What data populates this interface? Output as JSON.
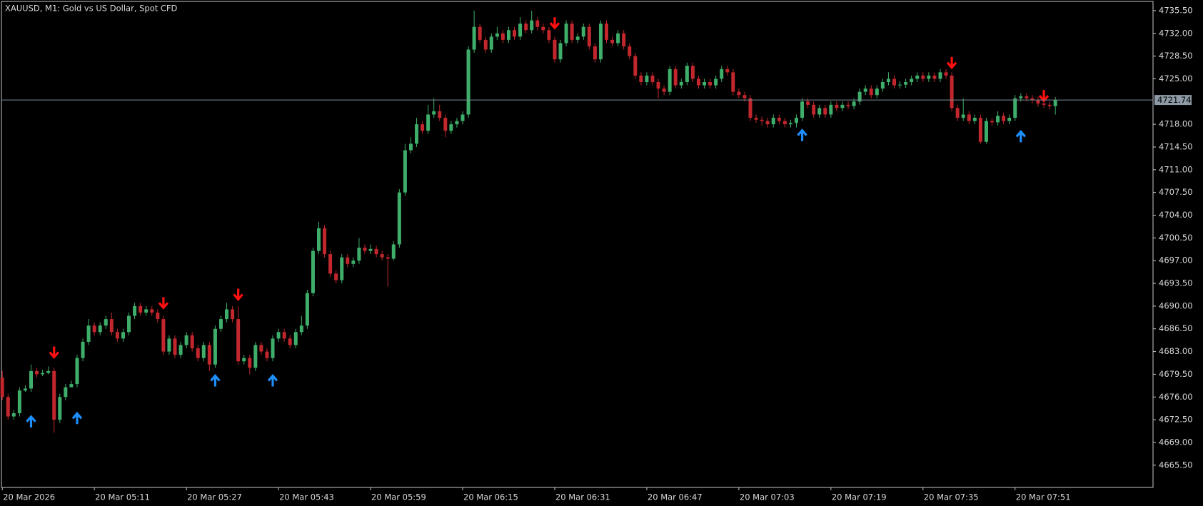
{
  "chart_data": {
    "type": "candlestick",
    "title": "XAUUSD, M1:  Gold vs US Dollar, Spot CFD",
    "categories": [
      "20 Mar 2026",
      null,
      null,
      null,
      null,
      null,
      null,
      null,
      null,
      null,
      null,
      null,
      null,
      null,
      null,
      null,
      "20 Mar 05:11",
      null,
      null,
      null,
      null,
      null,
      null,
      null,
      null,
      null,
      null,
      null,
      null,
      null,
      null,
      null,
      "20 Mar 05:27",
      null,
      null,
      null,
      null,
      null,
      null,
      null,
      null,
      null,
      null,
      null,
      null,
      null,
      null,
      null,
      "20 Mar 05:43",
      null,
      null,
      null,
      null,
      null,
      null,
      null,
      null,
      null,
      null,
      null,
      null,
      null,
      null,
      null,
      "20 Mar 05:59",
      null,
      null,
      null,
      null,
      null,
      null,
      null,
      null,
      null,
      null,
      null,
      null,
      null,
      null,
      null,
      "20 Mar 06:15",
      null,
      null,
      null,
      null,
      null,
      null,
      null,
      null,
      null,
      null,
      null,
      null,
      null,
      null,
      null,
      "20 Mar 06:31",
      null,
      null,
      null,
      null,
      null,
      null,
      null,
      null,
      null,
      null,
      null,
      null,
      null,
      null,
      null,
      "20 Mar 06:47",
      null,
      null,
      null,
      null,
      null,
      null,
      null,
      null,
      null,
      null,
      null,
      null,
      null,
      null,
      null,
      "20 Mar 07:03",
      null,
      null,
      null,
      null,
      null,
      null,
      null,
      null,
      null,
      null,
      null,
      null,
      null,
      null,
      null,
      "20 Mar 07:19",
      null,
      null,
      null,
      null,
      null,
      null,
      null,
      null,
      null,
      null,
      null,
      null,
      null,
      null,
      null,
      "20 Mar 07:35",
      null,
      null,
      null,
      null,
      null,
      null,
      null,
      null,
      null,
      null,
      null,
      null,
      null,
      null,
      null,
      "20 Mar 07:51",
      null,
      null,
      null,
      null,
      null,
      null,
      null
    ],
    "open": [
      4679,
      4676,
      4673,
      4673.5,
      4677,
      4677.3,
      4680,
      4679.5,
      4679.7,
      4680,
      4672.5,
      4676,
      4677.5,
      4678,
      4682,
      4684.5,
      4687,
      4686,
      4687,
      4688,
      4686,
      4685,
      4686,
      4688.5,
      4690,
      4689,
      4689.5,
      4689,
      4688,
      4683,
      4685,
      4682.5,
      4684,
      4685.5,
      4683.5,
      4682,
      4684,
      4681,
      4686.5,
      4688,
      4689.5,
      4688,
      4681.5,
      4682,
      4680.5,
      4684,
      4683,
      4682,
      4685,
      4686,
      4685,
      4684,
      4686,
      4687,
      4692,
      4698.5,
      4702,
      4698,
      4695,
      4694,
      4697.5,
      4696.5,
      4697,
      4699,
      4698.5,
      4698.8,
      4698,
      4697.5,
      4697.3,
      4699.5,
      4707.5,
      4714,
      4715,
      4718,
      4717,
      4719.5,
      4720,
      4719,
      4717,
      4718,
      4718.5,
      4719.5,
      4729.5,
      4733,
      4731,
      4729.5,
      4731.5,
      4732,
      4731,
      4732.5,
      4731.5,
      4733.5,
      4732.5,
      4734,
      4733,
      4732.5,
      4731,
      4728,
      4730.5,
      4733.5,
      4731,
      4731.5,
      4733,
      4730,
      4728,
      4733.5,
      4731,
      4730.5,
      4732,
      4730,
      4728.5,
      4725.5,
      4724.5,
      4725.5,
      4724.5,
      4723.5,
      4723,
      4726.5,
      4724,
      4724.5,
      4727,
      4725,
      4724,
      4724.5,
      4724,
      4725,
      4726.5,
      4726,
      4723,
      4722.5,
      4722,
      4719,
      4718.7,
      4718.5,
      4718,
      4719,
      4718.5,
      4718,
      4718.2,
      4719,
      4721.5,
      4721,
      4719.5,
      4720.5,
      4719.5,
      4721,
      4720.5,
      4721,
      4720.8,
      4721.5,
      4723,
      4723.5,
      4722.5,
      4723.5,
      4724.5,
      4725,
      4724,
      4724.1,
      4724.5,
      4725,
      4725.5,
      4725,
      4725.5,
      4725,
      4726,
      4725.5,
      4720.5,
      4719,
      4719.5,
      4718.5,
      4719,
      4715.3,
      4718.5,
      4718.3,
      4719.3,
      4718.5,
      4719,
      4722,
      4722.3,
      4722,
      4721.7,
      4721.2,
      4721,
      4720.8
    ],
    "high": [
      4680,
      4676.5,
      4674,
      4677.5,
      4677.8,
      4681,
      4680.5,
      4680.2,
      4680.7,
      4680.5,
      4676.5,
      4678,
      4678.5,
      4682.5,
      4685,
      4688,
      4687.5,
      4687.5,
      4688.5,
      4689,
      4686.5,
      4686.5,
      4689,
      4690.5,
      4690.5,
      4690,
      4690,
      4689.5,
      4688.5,
      4685.5,
      4685.5,
      4684.5,
      4686,
      4686,
      4684,
      4684.5,
      4684.5,
      4687,
      4688.5,
      4690.5,
      4690,
      4690,
      4682.5,
      4682.5,
      4684.5,
      4684.5,
      4683.5,
      4685.5,
      4686.5,
      4686.5,
      4685.5,
      4686.5,
      4688.5,
      4692.5,
      4699,
      4703,
      4702.5,
      4698.5,
      4695.5,
      4698,
      4698,
      4697.5,
      4700.5,
      4699.5,
      4699.5,
      4699.3,
      4698.5,
      4698,
      4700,
      4708,
      4715,
      4716,
      4719,
      4718.5,
      4721,
      4722,
      4721,
      4719.5,
      4718.5,
      4719,
      4720,
      4730,
      4735.5,
      4733.5,
      4731.5,
      4732,
      4733,
      4732.5,
      4733,
      4733,
      4734.5,
      4734,
      4735.5,
      4734.5,
      4733.5,
      4733,
      4731.5,
      4731,
      4734,
      4734,
      4732,
      4733.5,
      4733.5,
      4730.5,
      4734,
      4734,
      4731.5,
      4732.5,
      4732.5,
      4730.5,
      4729,
      4726,
      4726,
      4726,
      4725,
      4724,
      4727,
      4727,
      4725,
      4727.5,
      4727.5,
      4725.5,
      4725,
      4725,
      4725.5,
      4727,
      4727,
      4726.5,
      4723.5,
      4723,
      4722.5,
      4719.5,
      4719.2,
      4719,
      4719.5,
      4719.5,
      4719,
      4718.7,
      4719.5,
      4722,
      4722,
      4721.5,
      4721,
      4721,
      4721.5,
      4721.5,
      4721.5,
      4721.5,
      4722,
      4723.5,
      4724,
      4724,
      4724,
      4725,
      4726,
      4725.5,
      4724.6,
      4725,
      4725.5,
      4726,
      4726,
      4726,
      4726,
      4726.5,
      4726.5,
      4726,
      4721,
      4722,
      4720,
      4719.5,
      4719.5,
      4719,
      4719,
      4720,
      4719.8,
      4719.5,
      4722.5,
      4722.8,
      4722.8,
      4722.5,
      4722.2,
      4721.7,
      4721.5,
      4722.2
    ],
    "low": [
      4675.5,
      4672.5,
      4672.5,
      4673,
      4676.8,
      4676.8,
      4679,
      4679.2,
      4679.5,
      4670.5,
      4672,
      4675.5,
      4677.5,
      4677.5,
      4681.5,
      4684,
      4685.5,
      4685.5,
      4686.5,
      4685.5,
      4684.5,
      4684.5,
      4685.5,
      4688,
      4688.5,
      4688.5,
      4688.5,
      4687.5,
      4682.5,
      4682.5,
      4682,
      4682,
      4683.5,
      4683,
      4681.5,
      4681.5,
      4680,
      4680.5,
      4686,
      4687.5,
      4687.5,
      4681,
      4681,
      4679.5,
      4680,
      4682.5,
      4681.5,
      4681.5,
      4684.5,
      4684.5,
      4683.5,
      4683.5,
      4685.5,
      4686.5,
      4691.5,
      4698,
      4697.5,
      4694.5,
      4693.5,
      4693.5,
      4696,
      4696,
      4696.5,
      4698,
      4698,
      4697.5,
      4697,
      4693,
      4697,
      4699,
      4707,
      4713.5,
      4714.5,
      4716.5,
      4716.5,
      4719,
      4718.5,
      4716,
      4716.5,
      4717.5,
      4718,
      4719,
      4729,
      4730.5,
      4729,
      4729,
      4731,
      4730.5,
      4730.5,
      4731,
      4731,
      4732,
      4732,
      4732.5,
      4732,
      4730.5,
      4727.5,
      4727.5,
      4730,
      4730.5,
      4730.5,
      4731,
      4729.5,
      4727.5,
      4727.5,
      4730.5,
      4730,
      4730,
      4729.5,
      4728,
      4725,
      4724,
      4724,
      4724,
      4722,
      4722.5,
      4722.5,
      4723.5,
      4723.5,
      4724,
      4724.5,
      4723.5,
      4723.5,
      4723.5,
      4723.5,
      4724.5,
      4725.5,
      4722.5,
      4722,
      4721.5,
      4718.5,
      4718.2,
      4717.8,
      4717.5,
      4717.5,
      4718,
      4717.5,
      4717.5,
      4717.5,
      4718.5,
      4720.5,
      4719,
      4719,
      4719,
      4719,
      4720,
      4720,
      4720.3,
      4720.3,
      4721,
      4722.5,
      4722,
      4722,
      4723,
      4724,
      4723.5,
      4723.5,
      4723.6,
      4724,
      4724.5,
      4724.5,
      4724.5,
      4724.5,
      4724.5,
      4725,
      4720,
      4718.5,
      4718.5,
      4718,
      4718,
      4715,
      4715,
      4717.8,
      4717.8,
      4718,
      4718,
      4718.5,
      4721.5,
      4721.5,
      4721.2,
      4720.7,
      4720.5,
      4720.3,
      4719.5
    ],
    "close": [
      4676,
      4673,
      4673.5,
      4677,
      4677.3,
      4680,
      4679.5,
      4679.7,
      4680,
      4672.5,
      4676,
      4677.5,
      4678,
      4682,
      4684.5,
      4687,
      4686,
      4687,
      4688,
      4686,
      4685,
      4686,
      4688.5,
      4690,
      4689,
      4689.5,
      4689,
      4688,
      4683,
      4685,
      4682.5,
      4684,
      4685.5,
      4683.5,
      4682,
      4684,
      4681,
      4686.5,
      4688,
      4689.5,
      4688,
      4681.5,
      4682,
      4680.5,
      4684,
      4683,
      4682,
      4685,
      4686,
      4685,
      4684,
      4686,
      4687,
      4692,
      4698.5,
      4702,
      4698,
      4695,
      4694,
      4697.5,
      4696.5,
      4697,
      4699,
      4698.5,
      4698.8,
      4698,
      4697.5,
      4697.3,
      4699.5,
      4707.5,
      4714,
      4715,
      4718,
      4717,
      4719.5,
      4720,
      4719,
      4717,
      4718,
      4718.5,
      4719.5,
      4729.5,
      4733,
      4731,
      4729.5,
      4731.5,
      4732,
      4731,
      4732.5,
      4731.5,
      4733.5,
      4732.5,
      4734,
      4733,
      4732.5,
      4731,
      4728,
      4730.5,
      4733.5,
      4731,
      4731.5,
      4733,
      4730,
      4728,
      4733.5,
      4731,
      4730.5,
      4732,
      4730,
      4728.5,
      4725.5,
      4724.5,
      4725.5,
      4724.5,
      4723.5,
      4723,
      4726.5,
      4724,
      4724.5,
      4727,
      4725,
      4724,
      4724.5,
      4724,
      4725,
      4726.5,
      4726,
      4723,
      4722.5,
      4722,
      4719,
      4718.7,
      4718.5,
      4718,
      4719,
      4718.5,
      4718,
      4718.2,
      4719,
      4721.5,
      4721,
      4719.5,
      4720.5,
      4719.5,
      4721,
      4720.5,
      4721,
      4720.8,
      4721.5,
      4723,
      4723.5,
      4722.5,
      4723.5,
      4724.5,
      4725,
      4724,
      4724.1,
      4724.5,
      4725,
      4725.5,
      4725,
      4725.5,
      4725,
      4726,
      4725.5,
      4720.5,
      4719,
      4719.5,
      4718.5,
      4719,
      4715.3,
      4718.5,
      4718.3,
      4719.3,
      4718.5,
      4719,
      4722,
      4722.3,
      4722,
      4721.7,
      4721.2,
      4721,
      4720.8,
      4721.74
    ],
    "buy_arrows": [
      null,
      null,
      null,
      null,
      null,
      4672.2,
      null,
      null,
      null,
      null,
      null,
      null,
      null,
      4672.7,
      null,
      null,
      null,
      null,
      null,
      null,
      null,
      null,
      null,
      null,
      null,
      null,
      null,
      null,
      null,
      null,
      null,
      null,
      null,
      null,
      null,
      null,
      null,
      4678.5,
      null,
      null,
      null,
      null,
      null,
      null,
      null,
      null,
      null,
      4678.5,
      null,
      null,
      null,
      null,
      null,
      null,
      null,
      null,
      null,
      null,
      null,
      null,
      null,
      null,
      null,
      null,
      null,
      null,
      null,
      null,
      null,
      null,
      null,
      null,
      null,
      null,
      null,
      null,
      null,
      null,
      null,
      null,
      null,
      null,
      null,
      null,
      null,
      null,
      null,
      null,
      null,
      null,
      null,
      null,
      null,
      null,
      null,
      null,
      null,
      null,
      null,
      null,
      null,
      null,
      null,
      null,
      null,
      null,
      null,
      null,
      null,
      null,
      null,
      null,
      null,
      null,
      null,
      null,
      null,
      null,
      null,
      null,
      null,
      null,
      null,
      null,
      null,
      null,
      null,
      null,
      null,
      null,
      null,
      null,
      null,
      null,
      null,
      null,
      null,
      null,
      null,
      4716.3,
      null,
      null,
      null,
      null,
      null,
      null,
      null,
      null,
      null,
      null,
      null,
      null,
      null,
      null,
      null,
      null,
      null,
      null,
      null,
      null,
      null,
      null,
      null,
      null,
      null,
      null,
      null,
      null,
      null,
      null,
      null,
      null,
      null,
      null,
      null,
      null,
      null,
      4716.1,
      null,
      null,
      null,
      null,
      null,
      null
    ],
    "sell_arrows": [
      null,
      null,
      null,
      null,
      null,
      null,
      null,
      null,
      null,
      4682.9,
      null,
      null,
      null,
      null,
      null,
      null,
      null,
      null,
      null,
      null,
      null,
      null,
      null,
      null,
      null,
      null,
      null,
      null,
      4690.5,
      null,
      null,
      null,
      null,
      null,
      null,
      null,
      null,
      null,
      null,
      null,
      null,
      4691.8,
      null,
      null,
      null,
      null,
      null,
      null,
      null,
      null,
      null,
      null,
      null,
      null,
      null,
      null,
      null,
      null,
      null,
      null,
      null,
      null,
      null,
      null,
      null,
      null,
      null,
      null,
      null,
      null,
      null,
      null,
      null,
      null,
      null,
      null,
      null,
      null,
      null,
      null,
      null,
      null,
      null,
      null,
      null,
      null,
      null,
      null,
      null,
      null,
      null,
      null,
      null,
      null,
      null,
      null,
      4733.6,
      null,
      null,
      null,
      null,
      null,
      null,
      null,
      null,
      null,
      null,
      null,
      null,
      null,
      null,
      null,
      null,
      null,
      null,
      null,
      null,
      null,
      null,
      null,
      null,
      null,
      null,
      null,
      null,
      null,
      null,
      null,
      null,
      null,
      null,
      null,
      null,
      null,
      null,
      null,
      null,
      null,
      null,
      null,
      null,
      null,
      null,
      null,
      null,
      null,
      null,
      null,
      null,
      null,
      null,
      null,
      null,
      null,
      null,
      null,
      null,
      null,
      null,
      null,
      null,
      null,
      null,
      null,
      null,
      4727.5,
      null,
      null,
      null,
      null,
      null,
      null,
      null,
      null,
      null,
      null,
      null,
      null,
      null,
      null,
      null,
      4722.4,
      null,
      null
    ],
    "up_color": "#3fae6a",
    "down_color": "#c1272d",
    "buy_color": "#1e8fff",
    "sell_color": "#ff1010",
    "last_price": 4721.74,
    "ylim": [
      4662.07,
      4736.92
    ],
    "yticks": [
      {
        "value": 4665.5,
        "label": "4665.50"
      },
      {
        "value": 4669,
        "label": "4669.00"
      },
      {
        "value": 4672.5,
        "label": "4672.50"
      },
      {
        "value": 4676,
        "label": "4676.00"
      },
      {
        "value": 4679.5,
        "label": "4679.50"
      },
      {
        "value": 4683,
        "label": "4683.00"
      },
      {
        "value": 4686.5,
        "label": "4686.50"
      },
      {
        "value": 4690,
        "label": "4690.00"
      },
      {
        "value": 4693.5,
        "label": "4693.50"
      },
      {
        "value": 4697,
        "label": "4697.00"
      },
      {
        "value": 4700.5,
        "label": "4700.50"
      },
      {
        "value": 4704,
        "label": "4704.00"
      },
      {
        "value": 4707.5,
        "label": "4707.50"
      },
      {
        "value": 4711,
        "label": "4711.00"
      },
      {
        "value": 4714.5,
        "label": "4714.50"
      },
      {
        "value": 4718,
        "label": "4718.00"
      },
      {
        "value": 4725,
        "label": "4725.00"
      },
      {
        "value": 4728.5,
        "label": "4728.50"
      },
      {
        "value": 4732,
        "label": "4732.00"
      },
      {
        "value": 4735.5,
        "label": "4735.50"
      }
    ],
    "grid": false
  }
}
